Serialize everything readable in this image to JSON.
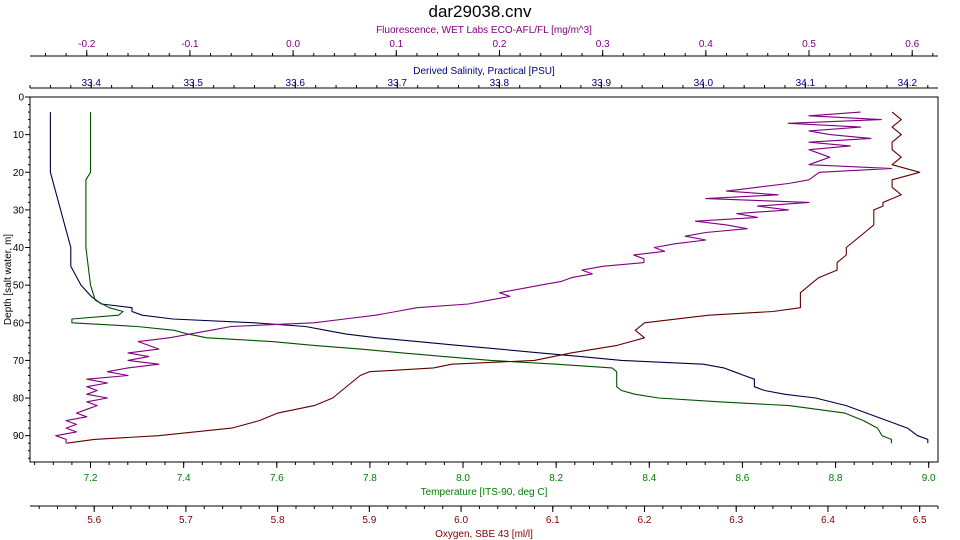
{
  "chart_data": {
    "type": "line",
    "title": "dar29038.cnv",
    "y_axis": {
      "label": "Depth [salt water, m]",
      "range": [
        0,
        97
      ],
      "ticks": [
        0,
        10,
        20,
        30,
        40,
        50,
        60,
        70,
        80,
        90
      ],
      "inverted": true
    },
    "axes": {
      "fluorescence": {
        "label": "Fluorescence, WET Labs ECO-AFL/FL [mg/m^3]",
        "range": [
          -0.255,
          0.625
        ],
        "ticks": [
          -0.2,
          -0.1,
          0.0,
          0.1,
          0.2,
          0.3,
          0.4,
          0.5,
          0.6
        ],
        "tick_labels": [
          "-0.2",
          "-0.1",
          "0.0",
          "0.1",
          "0.2",
          "0.3",
          "0.4",
          "0.5",
          "0.6"
        ],
        "position": "top",
        "color": "#800080"
      },
      "salinity": {
        "label": "Derived Salinity, Practical [PSU]",
        "range": [
          33.34,
          34.23
        ],
        "ticks": [
          33.4,
          33.5,
          33.6,
          33.7,
          33.8,
          33.9,
          34.0,
          34.1,
          34.2
        ],
        "tick_labels": [
          "33.4",
          "33.5",
          "33.6",
          "33.7",
          "33.8",
          "33.9",
          "34.0",
          "34.1",
          "34.2"
        ],
        "position": "top",
        "color": "#000080"
      },
      "temperature": {
        "label": "Temperature [ITS-90, deg C]",
        "range": [
          7.07,
          9.02
        ],
        "ticks": [
          7.2,
          7.4,
          7.6,
          7.8,
          8.0,
          8.2,
          8.4,
          8.6,
          8.8,
          9.0
        ],
        "tick_labels": [
          "7.2",
          "7.4",
          "7.6",
          "7.8",
          "8.0",
          "8.2",
          "8.4",
          "8.6",
          "8.8",
          "9.0"
        ],
        "position": "bottom",
        "color": "#008000"
      },
      "oxygen": {
        "label": "Oxygen, SBE 43 [ml/l]",
        "range": [
          5.53,
          6.52
        ],
        "ticks": [
          5.6,
          5.7,
          5.8,
          5.9,
          6.0,
          6.1,
          6.2,
          6.3,
          6.4,
          6.5
        ],
        "tick_labels": [
          "5.6",
          "5.7",
          "5.8",
          "5.9",
          "6.0",
          "6.1",
          "6.2",
          "6.3",
          "6.4",
          "6.5"
        ],
        "position": "bottom",
        "color": "#800000"
      }
    },
    "grid": false,
    "series": [
      {
        "axis": "salinity",
        "color": "#000040",
        "depth": [
          4,
          10,
          20,
          30,
          40,
          45,
          50,
          53,
          55,
          56,
          57,
          58,
          59,
          60,
          61,
          62,
          63,
          64,
          65,
          66,
          67,
          68,
          69,
          70,
          71,
          72,
          73,
          74,
          75,
          76,
          77,
          78,
          79,
          80,
          82,
          84,
          86,
          88,
          90,
          91,
          92
        ],
        "values": [
          33.36,
          33.36,
          33.36,
          33.37,
          33.38,
          33.38,
          33.39,
          33.4,
          33.41,
          33.44,
          33.44,
          33.45,
          33.48,
          33.56,
          33.61,
          33.63,
          33.65,
          33.68,
          33.72,
          33.76,
          33.8,
          33.84,
          33.88,
          33.92,
          34.0,
          34.02,
          34.03,
          34.04,
          34.05,
          34.05,
          34.05,
          34.06,
          34.08,
          34.11,
          34.14,
          34.16,
          34.18,
          34.2,
          34.21,
          34.22,
          34.22
        ]
      },
      {
        "axis": "temperature",
        "color": "#005000",
        "depth": [
          4,
          10,
          20,
          22,
          30,
          40,
          50,
          54,
          56,
          57,
          58,
          59,
          60,
          61,
          62,
          63,
          64,
          65,
          66,
          67,
          68,
          69,
          70,
          71,
          72,
          73,
          74,
          75,
          76,
          77,
          78,
          79,
          80,
          81,
          82,
          84,
          86,
          88,
          90,
          91,
          92
        ],
        "values": [
          7.2,
          7.2,
          7.2,
          7.19,
          7.19,
          7.19,
          7.2,
          7.21,
          7.24,
          7.27,
          7.26,
          7.16,
          7.16,
          7.3,
          7.38,
          7.41,
          7.45,
          7.59,
          7.68,
          7.78,
          7.87,
          7.96,
          8.06,
          8.2,
          8.32,
          8.33,
          8.33,
          8.33,
          8.33,
          8.33,
          8.34,
          8.37,
          8.42,
          8.55,
          8.7,
          8.82,
          8.86,
          8.89,
          8.9,
          8.92,
          8.92
        ]
      },
      {
        "axis": "fluorescence",
        "color": "#800080",
        "depth": [
          4,
          5,
          6,
          7,
          8,
          9,
          10,
          11,
          12,
          13,
          14,
          16,
          18,
          19,
          20,
          22,
          23,
          24,
          25,
          26,
          27,
          28,
          29,
          30,
          31,
          32,
          33,
          34,
          35,
          36,
          37,
          38,
          39,
          40,
          41,
          42,
          43,
          44,
          45,
          46,
          47,
          48,
          49,
          50,
          51,
          52,
          53,
          54,
          55,
          56,
          57,
          58,
          59,
          60,
          61,
          62,
          63,
          64,
          65,
          66,
          67,
          68,
          69,
          70,
          71,
          72,
          73,
          74,
          75,
          76,
          77,
          78,
          79,
          80,
          81,
          82,
          83,
          84,
          85,
          86,
          87,
          88,
          89,
          90,
          91,
          92
        ],
        "values": [
          0.55,
          0.5,
          0.57,
          0.48,
          0.55,
          0.5,
          0.52,
          0.56,
          0.5,
          0.54,
          0.5,
          0.52,
          0.5,
          0.58,
          0.51,
          0.5,
          0.48,
          0.45,
          0.42,
          0.47,
          0.4,
          0.5,
          0.45,
          0.48,
          0.43,
          0.45,
          0.39,
          0.42,
          0.44,
          0.4,
          0.38,
          0.4,
          0.37,
          0.35,
          0.36,
          0.33,
          0.34,
          0.34,
          0.3,
          0.28,
          0.29,
          0.27,
          0.26,
          0.24,
          0.22,
          0.2,
          0.21,
          0.19,
          0.17,
          0.12,
          0.1,
          0.08,
          0.05,
          0.02,
          -0.06,
          -0.08,
          -0.1,
          -0.12,
          -0.15,
          -0.14,
          -0.13,
          -0.16,
          -0.14,
          -0.16,
          -0.13,
          -0.16,
          -0.18,
          -0.16,
          -0.2,
          -0.18,
          -0.2,
          -0.19,
          -0.2,
          -0.18,
          -0.2,
          -0.19,
          -0.2,
          -0.21,
          -0.2,
          -0.22,
          -0.21,
          -0.22,
          -0.21,
          -0.23,
          -0.22,
          -0.22
        ]
      },
      {
        "axis": "oxygen",
        "color": "#600000",
        "depth": [
          4,
          6,
          8,
          10,
          12,
          14,
          16,
          18,
          20,
          22,
          24,
          26,
          28,
          29,
          30,
          32,
          34,
          36,
          38,
          40,
          42,
          44,
          46,
          48,
          50,
          52,
          54,
          56,
          57,
          58,
          60,
          62,
          64,
          66,
          68,
          70,
          71,
          72,
          73,
          74,
          76,
          78,
          80,
          82,
          84,
          86,
          88,
          90,
          91,
          92
        ],
        "values": [
          6.47,
          6.48,
          6.47,
          6.48,
          6.47,
          6.47,
          6.48,
          6.47,
          6.5,
          6.47,
          6.47,
          6.48,
          6.46,
          6.46,
          6.45,
          6.45,
          6.45,
          6.44,
          6.43,
          6.42,
          6.42,
          6.41,
          6.41,
          6.39,
          6.38,
          6.37,
          6.37,
          6.37,
          6.34,
          6.27,
          6.2,
          6.19,
          6.2,
          6.17,
          6.12,
          6.08,
          5.99,
          5.97,
          5.9,
          5.89,
          5.88,
          5.87,
          5.86,
          5.84,
          5.8,
          5.78,
          5.75,
          5.67,
          5.6,
          5.57
        ]
      }
    ]
  }
}
